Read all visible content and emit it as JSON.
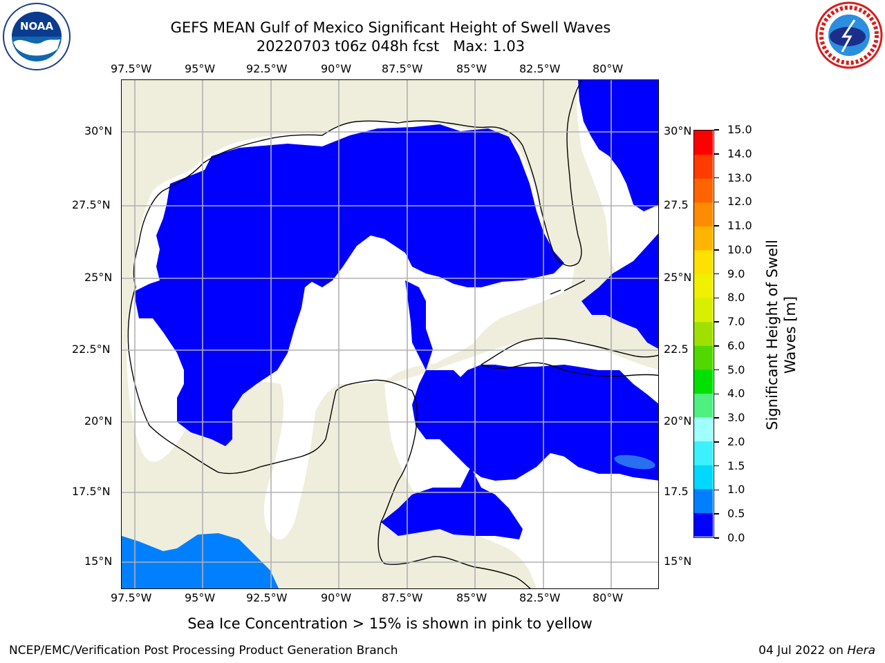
{
  "title": {
    "line1": "GEFS MEAN Gulf of Mexico Significant Height of Swell Waves",
    "line2": "20220703 t06z 048h fcst   Max: 1.03"
  },
  "logos": {
    "left": {
      "text": "NOAA",
      "icon": "noaa-logo-icon"
    },
    "right": {
      "icon": "national-weather-service-logo-icon"
    }
  },
  "map": {
    "lon_labels": [
      "97.5°W",
      "95°W",
      "92.5°W",
      "90°W",
      "87.5°W",
      "85°W",
      "82.5°W",
      "80°W"
    ],
    "lat_labels_left": [
      "30°N",
      "27.5°N",
      "25°N",
      "22.5°N",
      "20°N",
      "17.5°N",
      "15°N"
    ],
    "lat_labels_right": [
      "30°N",
      "27.5",
      "25°N",
      "22.5",
      "20°N",
      "17.5",
      "15°N"
    ],
    "colors": {
      "land": "#efeedd",
      "water_low": "#0000ff",
      "water_mid": "#0080ff",
      "water_zero": "#ffffff",
      "grid": "#b0b0b0"
    }
  },
  "colorbar": {
    "label_line1": "Significant Height of Swell",
    "label_line2": "Waves [m]",
    "ticks": [
      "0.0",
      "0.5",
      "1.0",
      "1.5",
      "2.0",
      "3.0",
      "4.0",
      "5.0",
      "6.0",
      "7.0",
      "8.0",
      "9.0",
      "10.0",
      "11.0",
      "12.0",
      "13.0",
      "14.0",
      "15.0"
    ],
    "colors": [
      "#0000ff",
      "#0080ff",
      "#00d8ff",
      "#3cf0ff",
      "#a0ffff",
      "#50f080",
      "#00e000",
      "#50d800",
      "#a0e000",
      "#d8f000",
      "#f0f000",
      "#ffe000",
      "#ffb400",
      "#ff8c00",
      "#ff6400",
      "#ff3c00",
      "#ff0000"
    ]
  },
  "footer": {
    "note": "Sea Ice Concentration > 15% is shown in pink to yellow",
    "left": "NCEP/EMC/Verification Post Processing Product Generation Branch",
    "right_date": "04 Jul 2022 on",
    "right_host": "Hera"
  }
}
